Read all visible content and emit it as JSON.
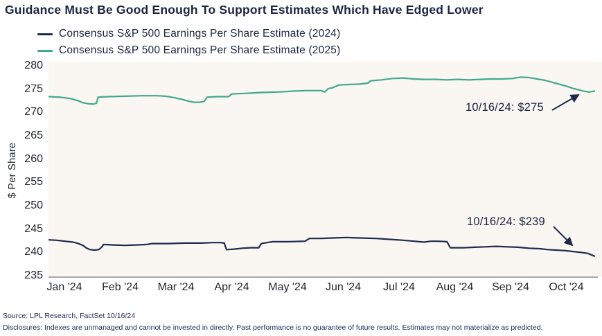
{
  "title": "Guidance Must Be Good Enough To Support Estimates Which Have Edged Lower",
  "legend": [
    {
      "label": "Consensus S&P 500 Earnings Per Share Estimate (2024)",
      "color": "#1c2b4d"
    },
    {
      "label": "Consensus S&P 500 Earnings Per Share Estimate (2025)",
      "color": "#3fa98c"
    }
  ],
  "annotations": [
    {
      "text": "10/16/24: $275",
      "series": "2025"
    },
    {
      "text": "10/16/24: $239",
      "series": "2024"
    }
  ],
  "footer": {
    "source": "Source: LPL Research, FactSet 10/16/24",
    "disclosures": "Disclosures: Indexes are unmanaged and cannot be invested in directly. Past performance is no guarantee of future results. Estimates may not materialize as predicted."
  },
  "chart_data": {
    "type": "line",
    "title": "Guidance Must Be Good Enough To Support Estimates Which Have Edged Lower",
    "xlabel": "",
    "ylabel": "$ Per Share",
    "ylim": [
      235,
      280
    ],
    "yticks": [
      280,
      275,
      270,
      265,
      260,
      255,
      250,
      245,
      240,
      235
    ],
    "xticklabels": [
      "Jan '24",
      "Feb '24",
      "Mar '24",
      "Apr '24",
      "May '24",
      "Jun '24",
      "Jul '24",
      "Aug '24",
      "Sep '24",
      "Oct '24"
    ],
    "grid": false,
    "legend_position": "top-left",
    "plot_background": "#faf6f2",
    "series": [
      {
        "name": "Consensus S&P 500 Earnings Per Share Estimate (2024)",
        "color": "#1c2b4d",
        "final_value_label": "10/16/24: $239",
        "points": [
          [
            0.0,
            242.7
          ],
          [
            0.015,
            242.6
          ],
          [
            0.03,
            242.4
          ],
          [
            0.045,
            242.2
          ],
          [
            0.055,
            241.9
          ],
          [
            0.063,
            241.5
          ],
          [
            0.07,
            240.9
          ],
          [
            0.076,
            240.6
          ],
          [
            0.085,
            240.5
          ],
          [
            0.092,
            240.6
          ],
          [
            0.098,
            241.2
          ],
          [
            0.101,
            241.7
          ],
          [
            0.12,
            241.6
          ],
          [
            0.14,
            241.5
          ],
          [
            0.16,
            241.6
          ],
          [
            0.18,
            241.7
          ],
          [
            0.19,
            241.9
          ],
          [
            0.22,
            241.9
          ],
          [
            0.25,
            242.0
          ],
          [
            0.28,
            242.0
          ],
          [
            0.3,
            242.1
          ],
          [
            0.315,
            242.1
          ],
          [
            0.322,
            242.0
          ],
          [
            0.326,
            240.6
          ],
          [
            0.34,
            240.7
          ],
          [
            0.355,
            240.9
          ],
          [
            0.37,
            241.0
          ],
          [
            0.385,
            241.0
          ],
          [
            0.39,
            241.9
          ],
          [
            0.4,
            242.1
          ],
          [
            0.41,
            242.3
          ],
          [
            0.44,
            242.3
          ],
          [
            0.47,
            242.4
          ],
          [
            0.478,
            243.0
          ],
          [
            0.5,
            243.0
          ],
          [
            0.52,
            243.1
          ],
          [
            0.545,
            243.2
          ],
          [
            0.57,
            243.1
          ],
          [
            0.6,
            243.0
          ],
          [
            0.625,
            242.8
          ],
          [
            0.65,
            242.6
          ],
          [
            0.67,
            242.4
          ],
          [
            0.688,
            242.2
          ],
          [
            0.7,
            242.4
          ],
          [
            0.715,
            242.4
          ],
          [
            0.73,
            242.3
          ],
          [
            0.736,
            241.0
          ],
          [
            0.76,
            241.0
          ],
          [
            0.78,
            241.1
          ],
          [
            0.8,
            241.2
          ],
          [
            0.82,
            241.3
          ],
          [
            0.84,
            241.2
          ],
          [
            0.86,
            241.1
          ],
          [
            0.88,
            240.9
          ],
          [
            0.9,
            240.8
          ],
          [
            0.915,
            240.6
          ],
          [
            0.93,
            240.5
          ],
          [
            0.945,
            240.4
          ],
          [
            0.96,
            240.2
          ],
          [
            0.975,
            240.0
          ],
          [
            0.988,
            239.8
          ],
          [
            1.0,
            239.2
          ]
        ]
      },
      {
        "name": "Consensus S&P 500 Earnings Per Share Estimate (2025)",
        "color": "#3fa98c",
        "final_value_label": "10/16/24: $275",
        "points": [
          [
            0.0,
            273.4
          ],
          [
            0.02,
            273.3
          ],
          [
            0.04,
            273.0
          ],
          [
            0.055,
            272.5
          ],
          [
            0.063,
            272.1
          ],
          [
            0.072,
            271.9
          ],
          [
            0.082,
            271.8
          ],
          [
            0.088,
            272.0
          ],
          [
            0.091,
            273.3
          ],
          [
            0.11,
            273.4
          ],
          [
            0.14,
            273.5
          ],
          [
            0.17,
            273.6
          ],
          [
            0.2,
            273.6
          ],
          [
            0.215,
            273.5
          ],
          [
            0.23,
            273.2
          ],
          [
            0.245,
            272.8
          ],
          [
            0.258,
            272.4
          ],
          [
            0.266,
            272.2
          ],
          [
            0.278,
            272.2
          ],
          [
            0.285,
            272.4
          ],
          [
            0.291,
            273.3
          ],
          [
            0.31,
            273.4
          ],
          [
            0.33,
            273.4
          ],
          [
            0.336,
            274.0
          ],
          [
            0.36,
            274.1
          ],
          [
            0.39,
            274.3
          ],
          [
            0.42,
            274.4
          ],
          [
            0.45,
            274.6
          ],
          [
            0.47,
            274.7
          ],
          [
            0.5,
            274.7
          ],
          [
            0.506,
            274.4
          ],
          [
            0.512,
            275.1
          ],
          [
            0.52,
            275.3
          ],
          [
            0.532,
            275.9
          ],
          [
            0.55,
            276.0
          ],
          [
            0.57,
            276.1
          ],
          [
            0.585,
            276.3
          ],
          [
            0.59,
            276.8
          ],
          [
            0.61,
            277.0
          ],
          [
            0.63,
            277.3
          ],
          [
            0.65,
            277.4
          ],
          [
            0.67,
            277.2
          ],
          [
            0.69,
            277.1
          ],
          [
            0.71,
            277.1
          ],
          [
            0.73,
            277.0
          ],
          [
            0.75,
            277.1
          ],
          [
            0.77,
            277.0
          ],
          [
            0.79,
            277.1
          ],
          [
            0.81,
            277.2
          ],
          [
            0.83,
            277.2
          ],
          [
            0.85,
            277.3
          ],
          [
            0.865,
            277.6
          ],
          [
            0.88,
            277.5
          ],
          [
            0.895,
            277.2
          ],
          [
            0.91,
            276.9
          ],
          [
            0.925,
            276.4
          ],
          [
            0.935,
            276.1
          ],
          [
            0.95,
            275.6
          ],
          [
            0.96,
            275.2
          ],
          [
            0.97,
            274.9
          ],
          [
            0.98,
            274.6
          ],
          [
            0.99,
            274.4
          ],
          [
            1.0,
            274.6
          ]
        ]
      }
    ]
  }
}
